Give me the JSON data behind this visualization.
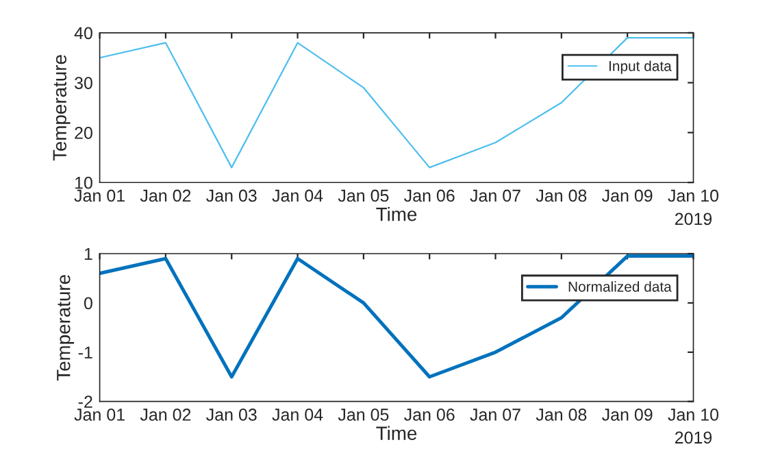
{
  "chart_data": [
    {
      "type": "line",
      "xlabel": "Time",
      "ylabel": "Temperature",
      "x": [
        "2019-01-01",
        "2019-01-02",
        "2019-01-03",
        "2019-01-04",
        "2019-01-05",
        "2019-01-06",
        "2019-01-07",
        "2019-01-08",
        "2019-01-09",
        "2019-01-10"
      ],
      "series": [
        {
          "name": "Input data",
          "color": "#4dbeee",
          "values": [
            35,
            38,
            13,
            38,
            29,
            13,
            18,
            26,
            39,
            39
          ]
        }
      ],
      "xlim": [
        "2019-01-01",
        "2019-01-10"
      ],
      "xticks": [
        {
          "value": "2019-01-01",
          "label": "Jan 01"
        },
        {
          "value": "2019-01-02",
          "label": "Jan 02"
        },
        {
          "value": "2019-01-03",
          "label": "Jan 03"
        },
        {
          "value": "2019-01-04",
          "label": "Jan 04"
        },
        {
          "value": "2019-01-05",
          "label": "Jan 05"
        },
        {
          "value": "2019-01-06",
          "label": "Jan 06"
        },
        {
          "value": "2019-01-07",
          "label": "Jan 07"
        },
        {
          "value": "2019-01-08",
          "label": "Jan 08"
        },
        {
          "value": "2019-01-09",
          "label": "Jan 09"
        },
        {
          "value": "2019-01-10",
          "label": "Jan 10"
        }
      ],
      "ylim": [
        10,
        40
      ],
      "yticks": [
        10,
        20,
        30,
        40
      ],
      "annotations": [
        "2019"
      ],
      "legend": "top right",
      "grid": false,
      "line_style": "solid",
      "marker": "none"
    },
    {
      "type": "line",
      "xlabel": "Time",
      "ylabel": "Temperature",
      "x": [
        "2019-01-01",
        "2019-01-02",
        "2019-01-03",
        "2019-01-04",
        "2019-01-05",
        "2019-01-06",
        "2019-01-07",
        "2019-01-08",
        "2019-01-09",
        "2019-01-10"
      ],
      "series": [
        {
          "name": "Normalized data",
          "color": "#0072bd",
          "values": [
            0.6,
            0.9,
            -1.5,
            0.9,
            0.0,
            -1.5,
            -1.0,
            -0.3,
            0.95,
            0.95
          ]
        }
      ],
      "xlim": [
        "2019-01-01",
        "2019-01-10"
      ],
      "xticks": [
        {
          "value": "2019-01-01",
          "label": "Jan 01"
        },
        {
          "value": "2019-01-02",
          "label": "Jan 02"
        },
        {
          "value": "2019-01-03",
          "label": "Jan 03"
        },
        {
          "value": "2019-01-04",
          "label": "Jan 04"
        },
        {
          "value": "2019-01-05",
          "label": "Jan 05"
        },
        {
          "value": "2019-01-06",
          "label": "Jan 06"
        },
        {
          "value": "2019-01-07",
          "label": "Jan 07"
        },
        {
          "value": "2019-01-08",
          "label": "Jan 08"
        },
        {
          "value": "2019-01-09",
          "label": "Jan 09"
        },
        {
          "value": "2019-01-10",
          "label": "Jan 10"
        }
      ],
      "ylim": [
        -2,
        1
      ],
      "yticks": [
        -2,
        -1,
        0,
        1
      ],
      "annotations": [
        "2019"
      ],
      "legend": "top right",
      "grid": false,
      "line_style": "solid",
      "marker": "none"
    }
  ]
}
